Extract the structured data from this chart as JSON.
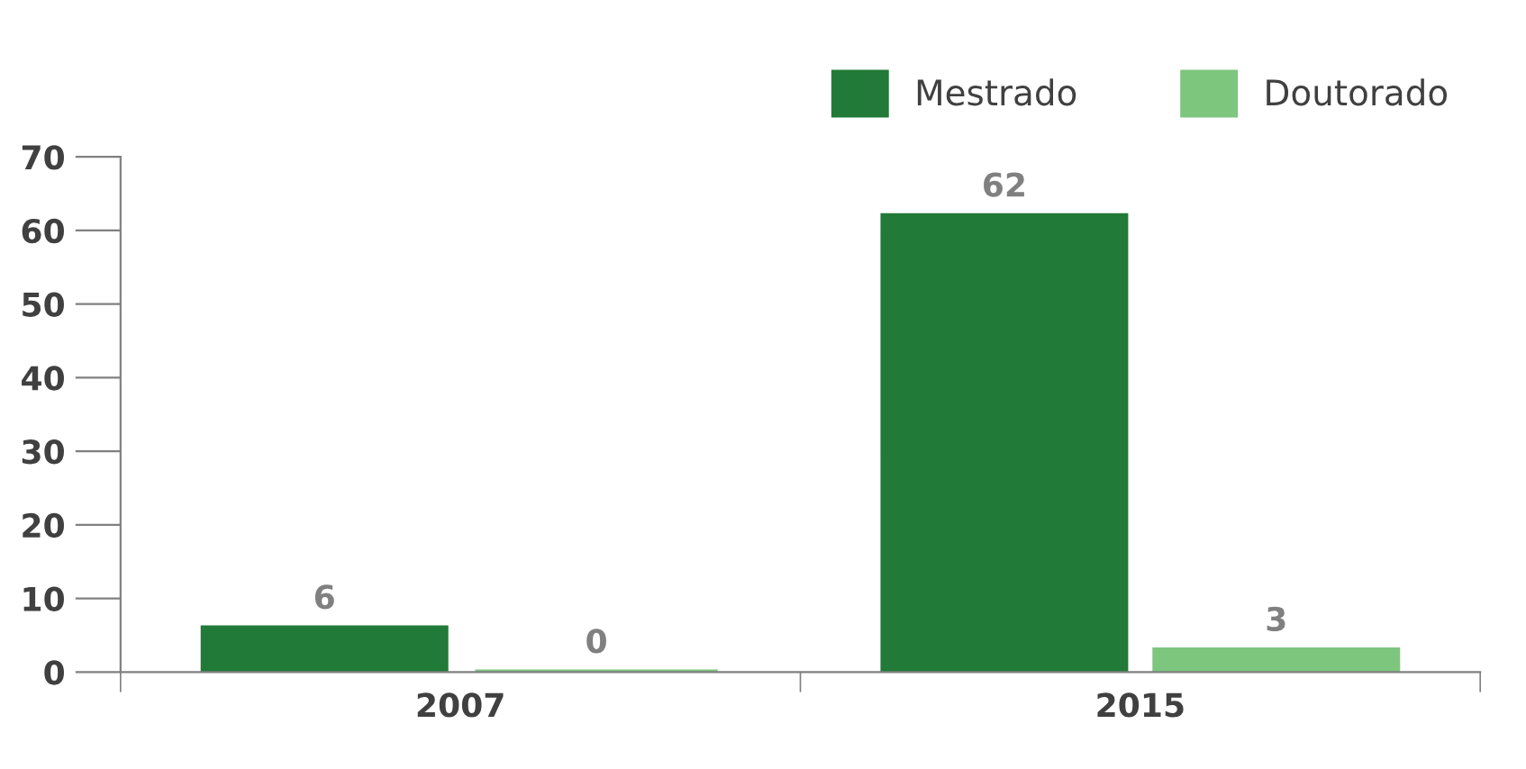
{
  "chart_data": {
    "type": "bar",
    "categories": [
      "2007",
      "2015"
    ],
    "series": [
      {
        "name": "Mestrado",
        "color": "#217a37",
        "values": [
          6,
          62
        ]
      },
      {
        "name": "Doutorado",
        "color": "#7dc67e",
        "values": [
          0,
          3
        ]
      }
    ],
    "ylim": [
      0,
      70
    ],
    "yticks": [
      0,
      10,
      20,
      30,
      40,
      50,
      60,
      70
    ],
    "data_labels": true,
    "legend": "top right",
    "grid": false
  }
}
